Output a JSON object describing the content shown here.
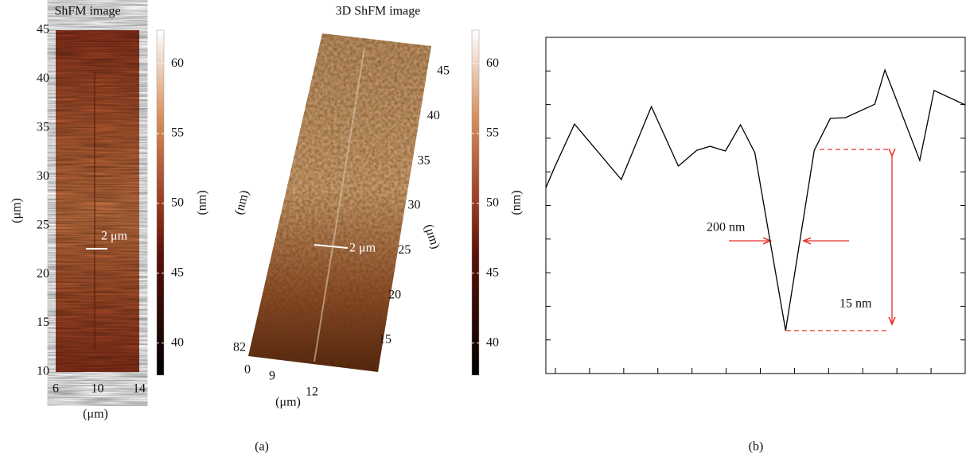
{
  "panel_a": {
    "label": "(a)",
    "left_image": {
      "title": "ShFM image",
      "ylim": [
        10,
        45
      ],
      "yticks": [
        10,
        15,
        20,
        25,
        30,
        35,
        40,
        45
      ],
      "xlim": [
        6,
        14
      ],
      "xticks": [
        6,
        10,
        14
      ],
      "x_axis_label": "(μm)",
      "y_axis_label": "(μm)",
      "scale_bar_label": "2 μm"
    },
    "left_colorbar": {
      "lim": [
        37.7,
        62.4
      ],
      "ticks": [
        40,
        45,
        50,
        55,
        60
      ],
      "label": "(nm)"
    },
    "image_3d": {
      "title": "3D ShFM image",
      "y_ticks": [
        15,
        20,
        25,
        30,
        35,
        40,
        45
      ],
      "x_ticks": [
        9,
        12
      ],
      "z_ticks": [
        0,
        82
      ],
      "x_axis_label": "(μm)",
      "y_axis_label": "(μm)",
      "z_axis_label": "(nm)",
      "scale_bar_label": "2 μm"
    },
    "right_colorbar": {
      "lim": [
        37.7,
        62.4
      ],
      "ticks": [
        40,
        45,
        50,
        55,
        60
      ],
      "label": "(nm)"
    }
  },
  "chart_data": {
    "type": "line",
    "label": "(b)",
    "color": "#000000",
    "x": [
      -0.28,
      0,
      0.56,
      1.93,
      2.81,
      3.6,
      4.14,
      4.53,
      4.98,
      5.42,
      5.84,
      6.74,
      7.58,
      8.05,
      8.49,
      9.35,
      9.65,
      10.67,
      11.09,
      12
    ],
    "values": [
      5.53,
      6.19,
      7.42,
      5.77,
      7.94,
      6.17,
      6.64,
      6.76,
      6.62,
      7.4,
      6.57,
      1.28,
      6.64,
      7.59,
      7.61,
      8.01,
      9.03,
      6.34,
      8.42,
      7.99
    ],
    "xlim": [
      -0.28,
      12
    ],
    "ylim": [
      0,
      10
    ],
    "xticks": [
      0,
      1,
      2,
      3,
      4,
      5,
      6,
      7,
      8,
      9,
      10,
      11
    ],
    "yticks": [
      1,
      2,
      3,
      4,
      5,
      6,
      7,
      8,
      9
    ],
    "annotations": [
      "200 nm",
      "15 nm"
    ]
  }
}
